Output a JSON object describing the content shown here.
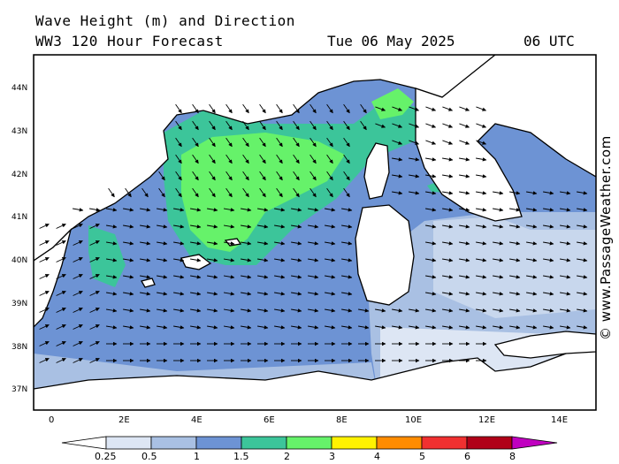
{
  "header": {
    "title_line1": "Wave Height (m) and Direction",
    "title_line2": "WW3 120 Hour Forecast",
    "date": "Tue 06 May 2025",
    "time": "06 UTC"
  },
  "copyright": "© www.PassageWeather.com",
  "axes": {
    "latitude_labels": [
      "44N",
      "43N",
      "42N",
      "41N",
      "40N",
      "39N",
      "38N",
      "37N"
    ],
    "longitude_labels": [
      "0",
      "2E",
      "4E",
      "6E",
      "8E",
      "10E",
      "12E",
      "14E"
    ]
  },
  "legend": {
    "ticks": [
      "0.25",
      "0.5",
      "1",
      "1.5",
      "2",
      "3",
      "4",
      "5",
      "6",
      "8"
    ],
    "colors": [
      "#ffffff",
      "#dde6f4",
      "#a9c0e3",
      "#6d93d4",
      "#3cc59a",
      "#66f26a",
      "#fff200",
      "#ff8c00",
      "#f03030",
      "#b00018",
      "#c000c0"
    ]
  },
  "palette": {
    "land": "#ffffff",
    "band_0_25": "#dde6f4",
    "band_0_5": "#a9c0e3",
    "band_1": "#6d93d4",
    "band_1_5": "#3cc59a",
    "band_2": "#66f26a"
  }
}
